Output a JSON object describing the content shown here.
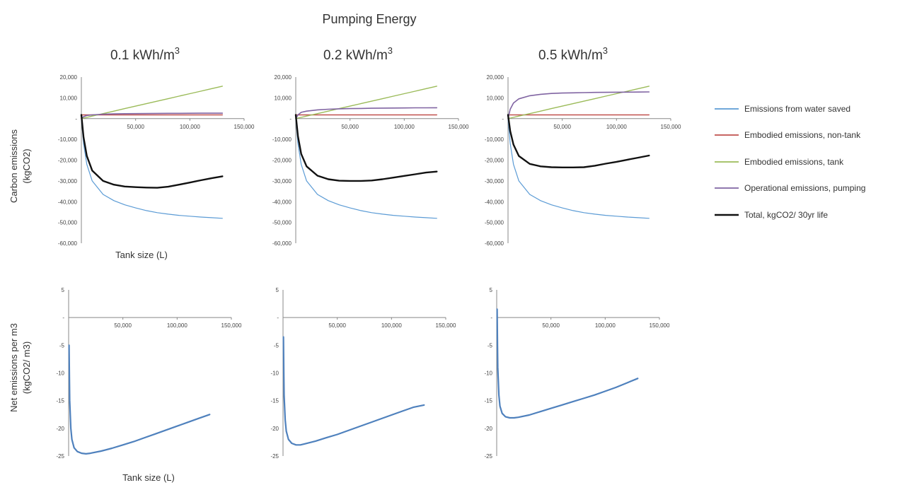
{
  "figure": {
    "title": "Pumping Energy",
    "panel_titles": [
      "0.1 kWh/m",
      "0.2 kWh/m",
      "0.5 kWh/m"
    ],
    "panel_title_sup": "3",
    "top_ylabel_line1": "Carbon emissions",
    "top_ylabel_line2": "(kgCO2)",
    "bottom_ylabel_line1": "Net emissions per m3",
    "bottom_ylabel_line2": "(kgCO2/ m3)",
    "top_xlabel": "Tank size (L)",
    "bottom_xlabel": "Tank size (L)"
  },
  "colors": {
    "water_saved": "#5b9bd5",
    "non_tank": "#c0504d",
    "tank": "#9bbb59",
    "pumping": "#8064a2",
    "total": "#111111",
    "net": "#4f81bd",
    "axis": "#888888"
  },
  "chart_data": [
    {
      "type": "line",
      "panel": "0.1 kWh/m3",
      "xlim": [
        0,
        150000
      ],
      "ylim": [
        -60000,
        20000
      ],
      "xticks": [
        "50,000",
        "100,000",
        "150,000"
      ],
      "yticks": [
        "20,000",
        "10,000",
        "-",
        "-10,000",
        "-20,000",
        "-30,000",
        "-40,000",
        "-50,000",
        "-60,000"
      ],
      "x": [
        0,
        2000,
        5000,
        10000,
        20000,
        30000,
        40000,
        50000,
        60000,
        70000,
        80000,
        90000,
        100000,
        110000,
        120000,
        130000
      ],
      "series": [
        {
          "name": "Emissions from water saved",
          "values": [
            0,
            -12000,
            -22000,
            -30000,
            -36500,
            -39500,
            -41500,
            -43000,
            -44300,
            -45300,
            -46000,
            -46600,
            -47000,
            -47400,
            -47700,
            -48000
          ]
        },
        {
          "name": "Embodied emissions, non-tank",
          "values": [
            1800,
            1800,
            1800,
            1800,
            1800,
            1800,
            1800,
            1800,
            1800,
            1800,
            1800,
            1800,
            1800,
            1800,
            1800,
            1800
          ]
        },
        {
          "name": "Embodied emissions, tank",
          "values": [
            0,
            250,
            600,
            1200,
            2400,
            3600,
            4800,
            6000,
            7200,
            8400,
            9600,
            10800,
            12000,
            13200,
            14400,
            15600
          ]
        },
        {
          "name": "Operational emissions, pumping",
          "values": [
            0,
            900,
            1500,
            1800,
            2100,
            2250,
            2350,
            2400,
            2450,
            2500,
            2520,
            2550,
            2570,
            2590,
            2600,
            2620
          ]
        },
        {
          "name": "Total, kgCO2/ 30yr life",
          "values": [
            1800,
            -9000,
            -18000,
            -25000,
            -30000,
            -31800,
            -32700,
            -33000,
            -33200,
            -33300,
            -32800,
            -31800,
            -30800,
            -29700,
            -28700,
            -27800
          ]
        }
      ]
    },
    {
      "type": "line",
      "panel": "0.2 kWh/m3",
      "xlim": [
        0,
        150000
      ],
      "ylim": [
        -60000,
        20000
      ],
      "xticks": [
        "50,000",
        "100,000",
        "150,000"
      ],
      "yticks": [
        "20,000",
        "10,000",
        "-",
        "-10,000",
        "-20,000",
        "-30,000",
        "-40,000",
        "-50,000",
        "-60,000"
      ],
      "x": [
        0,
        2000,
        5000,
        10000,
        20000,
        30000,
        40000,
        50000,
        60000,
        70000,
        80000,
        90000,
        100000,
        110000,
        120000,
        130000
      ],
      "series": [
        {
          "name": "Emissions from water saved",
          "values": [
            0,
            -12000,
            -22000,
            -30000,
            -36500,
            -39500,
            -41500,
            -43000,
            -44300,
            -45300,
            -46000,
            -46600,
            -47000,
            -47400,
            -47700,
            -48000
          ]
        },
        {
          "name": "Embodied emissions, non-tank",
          "values": [
            1800,
            1800,
            1800,
            1800,
            1800,
            1800,
            1800,
            1800,
            1800,
            1800,
            1800,
            1800,
            1800,
            1800,
            1800,
            1800
          ]
        },
        {
          "name": "Embodied emissions, tank",
          "values": [
            0,
            250,
            600,
            1200,
            2400,
            3600,
            4800,
            6000,
            7200,
            8400,
            9600,
            10800,
            12000,
            13200,
            14400,
            15600
          ]
        },
        {
          "name": "Operational emissions, pumping",
          "values": [
            0,
            1800,
            3000,
            3600,
            4200,
            4500,
            4700,
            4800,
            4900,
            5000,
            5040,
            5100,
            5140,
            5180,
            5200,
            5240
          ]
        },
        {
          "name": "Total, kgCO2/ 30yr life",
          "values": [
            1800,
            -8500,
            -17000,
            -23000,
            -27500,
            -29200,
            -29900,
            -30000,
            -30000,
            -29800,
            -29200,
            -28400,
            -27600,
            -26800,
            -26000,
            -25500
          ]
        }
      ]
    },
    {
      "type": "line",
      "panel": "0.5 kWh/m3",
      "xlim": [
        0,
        150000
      ],
      "ylim": [
        -60000,
        20000
      ],
      "xticks": [
        "50,000",
        "100,000",
        "150,000"
      ],
      "yticks": [
        "20,000",
        "10,000",
        "-",
        "-10,000",
        "-20,000",
        "-30,000",
        "-40,000",
        "-50,000",
        "-60,000"
      ],
      "x": [
        0,
        2000,
        5000,
        10000,
        20000,
        30000,
        40000,
        50000,
        60000,
        70000,
        80000,
        90000,
        100000,
        110000,
        120000,
        130000
      ],
      "series": [
        {
          "name": "Emissions from water saved",
          "values": [
            0,
            -12000,
            -22000,
            -30000,
            -36500,
            -39500,
            -41500,
            -43000,
            -44300,
            -45300,
            -46000,
            -46600,
            -47000,
            -47400,
            -47700,
            -48000
          ]
        },
        {
          "name": "Embodied emissions, non-tank",
          "values": [
            1800,
            1800,
            1800,
            1800,
            1800,
            1800,
            1800,
            1800,
            1800,
            1800,
            1800,
            1800,
            1800,
            1800,
            1800,
            1800
          ]
        },
        {
          "name": "Embodied emissions, tank",
          "values": [
            0,
            250,
            600,
            1200,
            2400,
            3600,
            4800,
            6000,
            7200,
            8400,
            9600,
            10800,
            12000,
            13200,
            14400,
            15600
          ]
        },
        {
          "name": "Operational emissions, pumping",
          "values": [
            0,
            4500,
            7500,
            9500,
            11000,
            11700,
            12100,
            12300,
            12400,
            12500,
            12600,
            12650,
            12700,
            12750,
            12800,
            12850
          ]
        },
        {
          "name": "Total, kgCO2/ 30yr life",
          "values": [
            1800,
            -6000,
            -12500,
            -18000,
            -21800,
            -23000,
            -23400,
            -23500,
            -23500,
            -23400,
            -22700,
            -21700,
            -20800,
            -19800,
            -18800,
            -17800
          ]
        }
      ]
    },
    {
      "type": "line",
      "panel": "0.1 kWh/m3 (per m3)",
      "xlim": [
        0,
        150000
      ],
      "ylim": [
        -25,
        5
      ],
      "xticks": [
        "50,000",
        "100,000",
        "150,000"
      ],
      "yticks": [
        "5",
        "-",
        "-5",
        "-10",
        "-15",
        "-20",
        "-25"
      ],
      "x": [
        400,
        700,
        1000,
        2000,
        3000,
        5000,
        8000,
        12000,
        16000,
        20000,
        30000,
        40000,
        50000,
        60000,
        70000,
        80000,
        90000,
        100000,
        110000,
        120000,
        130000
      ],
      "series": [
        {
          "name": "",
          "values": [
            -5,
            -11,
            -15,
            -20,
            -22,
            -23.5,
            -24.2,
            -24.5,
            -24.6,
            -24.5,
            -24.1,
            -23.6,
            -23.0,
            -22.4,
            -21.7,
            -21.0,
            -20.3,
            -19.6,
            -18.9,
            -18.2,
            -17.5
          ]
        }
      ]
    },
    {
      "type": "line",
      "panel": "0.2 kWh/m3 (per m3)",
      "xlim": [
        0,
        150000
      ],
      "ylim": [
        -25,
        5
      ],
      "xticks": [
        "50,000",
        "100,000",
        "150,000"
      ],
      "yticks": [
        "5",
        "-",
        "-5",
        "-10",
        "-15",
        "-20",
        "-25"
      ],
      "x": [
        400,
        700,
        1000,
        2000,
        3000,
        5000,
        8000,
        12000,
        16000,
        20000,
        30000,
        40000,
        50000,
        60000,
        70000,
        80000,
        90000,
        100000,
        110000,
        120000,
        130000
      ],
      "series": [
        {
          "name": "",
          "values": [
            -3.5,
            -10,
            -14,
            -18.5,
            -20.5,
            -22,
            -22.7,
            -23.0,
            -23.0,
            -22.8,
            -22.3,
            -21.7,
            -21.1,
            -20.4,
            -19.7,
            -19.0,
            -18.3,
            -17.6,
            -16.9,
            -16.2,
            -15.8
          ]
        }
      ]
    },
    {
      "type": "line",
      "panel": "0.5 kWh/m3 (per m3)",
      "xlim": [
        0,
        150000
      ],
      "ylim": [
        -25,
        5
      ],
      "xticks": [
        "50,000",
        "100,000",
        "150,000"
      ],
      "yticks": [
        "5",
        "-",
        "-5",
        "-10",
        "-15",
        "-20",
        "-25"
      ],
      "x": [
        400,
        700,
        1000,
        2000,
        3000,
        5000,
        8000,
        12000,
        16000,
        20000,
        30000,
        40000,
        50000,
        60000,
        70000,
        80000,
        90000,
        100000,
        110000,
        120000,
        130000
      ],
      "series": [
        {
          "name": "",
          "values": [
            1.5,
            -5,
            -9,
            -14,
            -16,
            -17.3,
            -17.9,
            -18.1,
            -18.1,
            -18.0,
            -17.6,
            -17.0,
            -16.4,
            -15.8,
            -15.2,
            -14.6,
            -14.0,
            -13.3,
            -12.6,
            -11.8,
            -11.0
          ]
        }
      ]
    }
  ]
}
